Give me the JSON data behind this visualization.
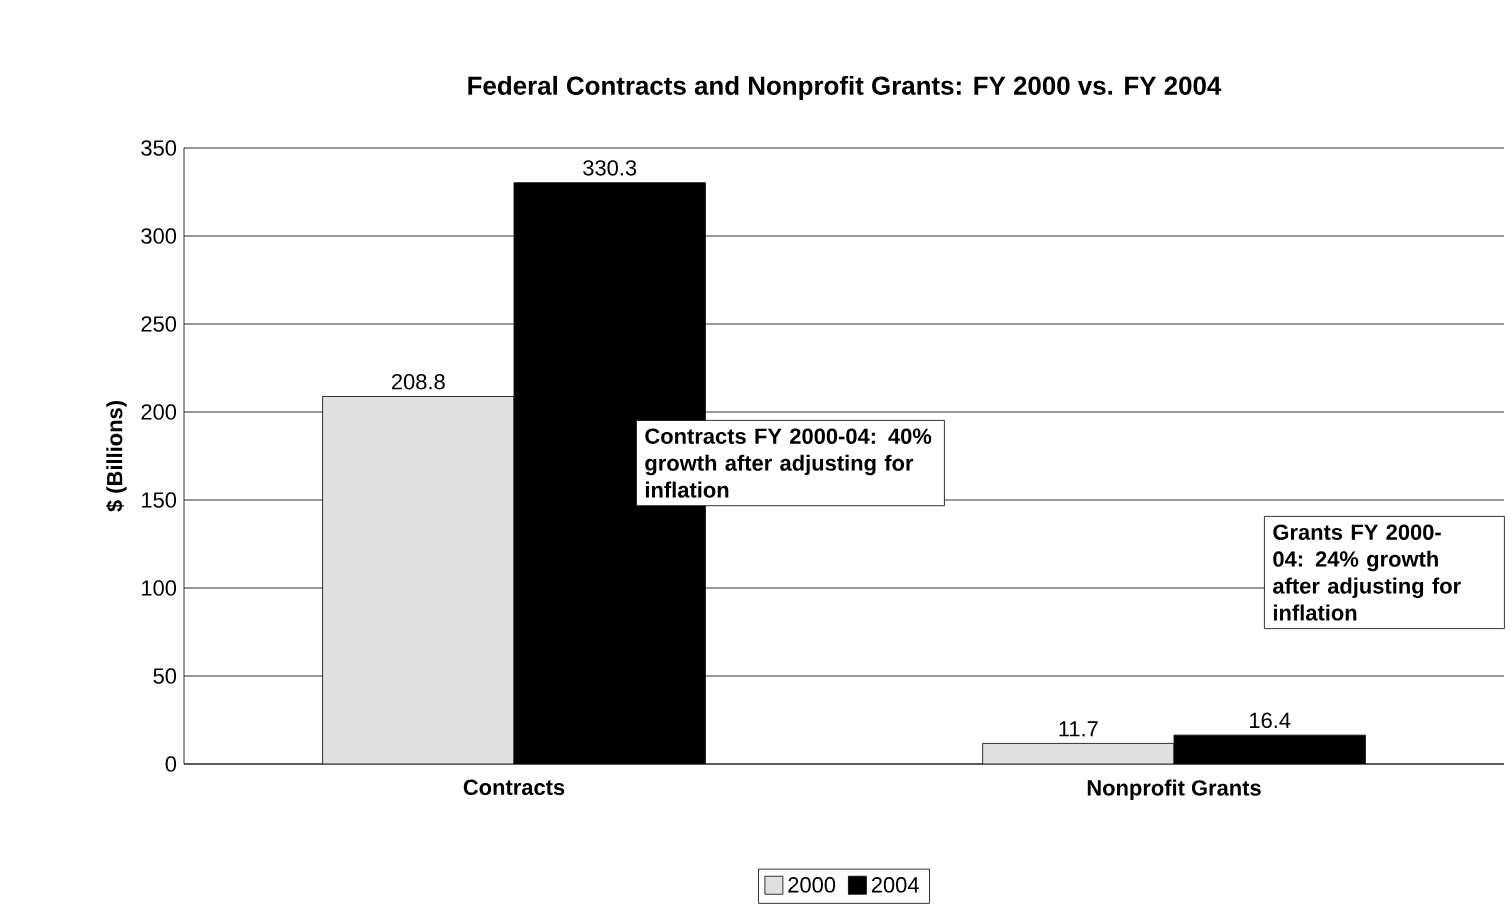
{
  "chart_data": {
    "type": "bar",
    "title": "Federal Contracts and Nonprofit Grants: FY 2000 vs. FY 2004",
    "ylabel": "$ (Billions)",
    "categories": [
      "Contracts",
      "Nonprofit Grants"
    ],
    "series": [
      {
        "name": "2000",
        "color": "#e0e0e0",
        "values": [
          208.8,
          11.7
        ]
      },
      {
        "name": "2004",
        "color": "#000000",
        "values": [
          330.3,
          16.4
        ]
      }
    ],
    "ylim": [
      0,
      350
    ],
    "yticks": [
      0,
      50,
      100,
      150,
      200,
      250,
      300,
      350
    ],
    "grid": "y",
    "legend": "bottom",
    "data_labels": true,
    "annotations": [
      "Contracts FY 2000-04: 40% growth after adjusting for inflation",
      "Grants FY 2000-04: 24% growth after adjusting for inflation"
    ]
  }
}
